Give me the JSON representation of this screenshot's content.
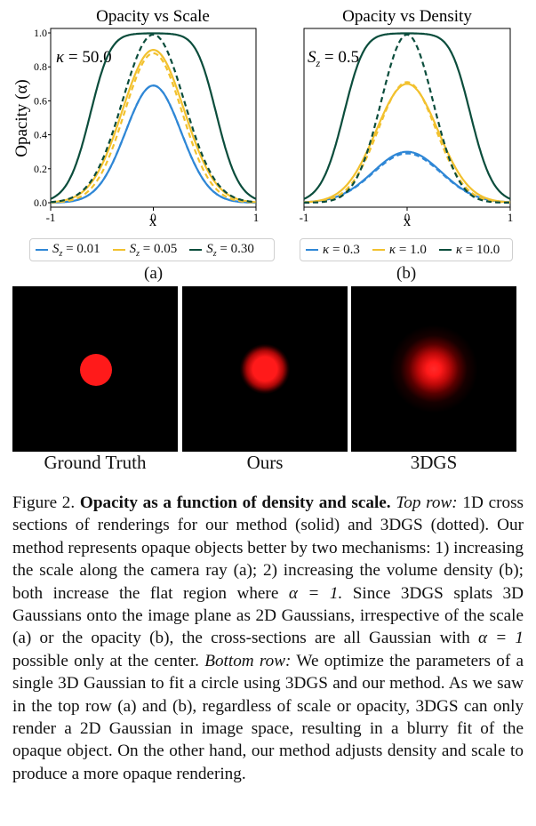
{
  "colors": {
    "blue": "#2f87d6",
    "yellow": "#f2c12e",
    "green": "#0b4d3c",
    "red": "#ff1a1a"
  },
  "chart_data": [
    {
      "type": "line",
      "title": "Opacity vs Scale",
      "xlabel": "x",
      "ylabel": "Opacity (α)",
      "xlim": [
        -1,
        1
      ],
      "ylim": [
        0,
        1
      ],
      "xticks": [
        "-1",
        "0",
        "1"
      ],
      "yticks": [
        "0.0",
        "0.2",
        "0.4",
        "0.6",
        "0.8",
        "1.0"
      ],
      "annotation": "κ = 50.0",
      "series": [
        {
          "name": "S_z = 0.01",
          "color": "#2f87d6",
          "solid_peak": 0.69,
          "dotted_peak": 0.69,
          "solid_shape": "gaussian",
          "dotted_sigma": 0.27
        },
        {
          "name": "S_z = 0.05",
          "color": "#f2c12e",
          "solid_peak": 0.9,
          "dotted_peak": 0.88,
          "solid_shape": "gaussian",
          "dotted_sigma": 0.28
        },
        {
          "name": "S_z = 0.30",
          "color": "#0b4d3c",
          "solid_peak": 1.0,
          "dotted_peak": 0.99,
          "solid_shape": "flat-top",
          "dotted_sigma": 0.3
        }
      ]
    },
    {
      "type": "line",
      "title": "Opacity vs Density",
      "xlabel": "x",
      "ylabel": "",
      "xlim": [
        -1,
        1
      ],
      "ylim": [
        0,
        1
      ],
      "xticks": [
        "-1",
        "0",
        "1"
      ],
      "annotation": "S_z = 0.5",
      "series": [
        {
          "name": "κ = 0.3",
          "color": "#2f87d6",
          "solid_peak": 0.3,
          "dotted_peak": 0.29,
          "solid_shape": "gaussian",
          "dotted_sigma": 0.33
        },
        {
          "name": "κ = 1.0",
          "color": "#f2c12e",
          "solid_peak": 0.7,
          "dotted_peak": 0.71,
          "solid_shape": "gaussian",
          "dotted_sigma": 0.28
        },
        {
          "name": "κ = 10.0",
          "color": "#0b4d3c",
          "solid_peak": 1.0,
          "dotted_peak": 0.99,
          "solid_shape": "flat-top",
          "dotted_sigma": 0.25
        }
      ]
    }
  ],
  "legends": {
    "a": [
      {
        "var": "S",
        "sub": "z",
        "text": " = 0.01",
        "color": "#2f87d6"
      },
      {
        "var": "S",
        "sub": "z",
        "text": " = 0.05",
        "color": "#f2c12e"
      },
      {
        "var": "S",
        "sub": "z",
        "text": " = 0.30",
        "color": "#0b4d3c"
      }
    ],
    "b": [
      {
        "var": "κ",
        "sub": "",
        "text": " = 0.3",
        "color": "#2f87d6"
      },
      {
        "var": "κ",
        "sub": "",
        "text": " = 1.0",
        "color": "#f2c12e"
      },
      {
        "var": "κ",
        "sub": "",
        "text": " = 10.0",
        "color": "#0b4d3c"
      }
    ]
  },
  "sublabels": {
    "a": "(a)",
    "b": "(b)"
  },
  "panels": [
    {
      "label": "Ground Truth",
      "style": "sharp"
    },
    {
      "label": "Ours",
      "style": "soft"
    },
    {
      "label": "3DGS",
      "style": "blurry"
    }
  ],
  "caption": {
    "fig": "Figure 2.",
    "bold": "Opacity as a function of density and scale.",
    "top_row_label": "Top row:",
    "text1": "1D cross sections of renderings for our method (solid) and 3DGS (dotted).  Our method represents opaque objects better by two mechanisms: 1) increasing the scale along the camera ray (a); 2) increasing the volume density (b); both increase the flat region where",
    "alpha": "α = 1.",
    "text2": "Since 3DGS splats 3D Gaussians onto the image plane as 2D Gaussians, irrespective of the scale (a) or the opacity (b), the cross-sections are all Gaussian with",
    "alpha2": "α = 1",
    "text3": "possible only at the center.",
    "bottom_row_label": "Bottom row:",
    "text4": "We optimize the parameters of a single 3D Gaussian to fit a circle using 3DGS and our method.  As we saw in the top row (a) and (b), regardless of scale or opacity, 3DGS can only render a 2D Gaussian in image space, resulting in a blurry fit of the opaque object.  On the other hand, our method adjusts density and scale to produce a more opaque rendering."
  }
}
